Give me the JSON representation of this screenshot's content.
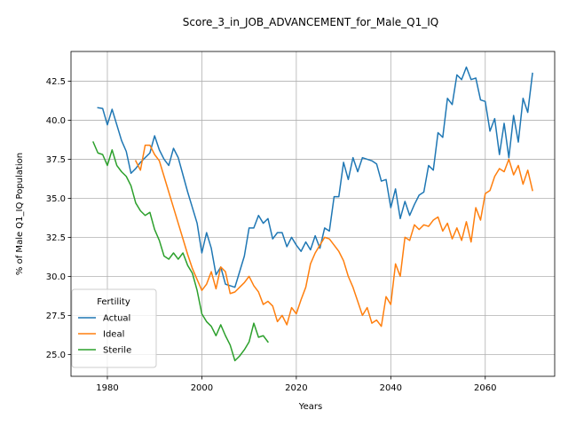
{
  "chart_data": {
    "type": "line",
    "title": "Score_3_in_JOB_ADVANCEMENT_for_Male_Q1_IQ",
    "xlabel": "Years",
    "ylabel": "% of Male Q1_IQ Population",
    "xlim": [
      1972.3,
      2074.7
    ],
    "ylim": [
      23.6,
      44.4
    ],
    "xticks": [
      1980,
      2000,
      2020,
      2040,
      2060
    ],
    "yticks": [
      25.0,
      27.5,
      30.0,
      32.5,
      35.0,
      37.5,
      40.0,
      42.5
    ],
    "xtick_labels": [
      "1980",
      "2000",
      "2020",
      "2040",
      "2060"
    ],
    "ytick_labels": [
      "25.0",
      "27.5",
      "30.0",
      "32.5",
      "35.0",
      "37.5",
      "40.0",
      "42.5"
    ],
    "grid": true,
    "legend": {
      "title": "Fertility",
      "placement": "lower-left"
    },
    "colors": {
      "Actual": "#1f77b4",
      "Ideal": "#ff7f0e",
      "Sterile": "#2ca02c"
    },
    "series": [
      {
        "name": "Actual",
        "x": [
          1978,
          1979,
          1980,
          1981,
          1982,
          1983,
          1984,
          1985,
          1986,
          1987,
          1988,
          1989,
          1990,
          1991,
          1992,
          1993,
          1994,
          1995,
          1996,
          1997,
          1998,
          1999,
          2000,
          2001,
          2002,
          2003,
          2004,
          2005,
          2006,
          2007,
          2008,
          2009,
          2010,
          2011,
          2012,
          2013,
          2014,
          2015,
          2016,
          2017,
          2018,
          2019,
          2020,
          2021,
          2022,
          2023,
          2024,
          2025,
          2026,
          2027,
          2028,
          2029,
          2030,
          2031,
          2032,
          2033,
          2034,
          2035,
          2036,
          2037,
          2038,
          2039,
          2040,
          2041,
          2042,
          2043,
          2044,
          2045,
          2046,
          2047,
          2048,
          2049,
          2050,
          2051,
          2052,
          2053,
          2054,
          2055,
          2056,
          2057,
          2058,
          2059,
          2060,
          2061,
          2062,
          2063,
          2064,
          2065,
          2066,
          2067,
          2068,
          2069,
          2070
        ],
        "values": [
          40.8,
          40.75,
          39.7,
          40.7,
          39.7,
          38.7,
          38.0,
          36.6,
          36.9,
          37.3,
          37.6,
          37.9,
          39.0,
          38.1,
          37.5,
          37.1,
          38.2,
          37.6,
          36.5,
          35.4,
          34.4,
          33.4,
          31.5,
          32.8,
          31.8,
          30.1,
          30.6,
          29.5,
          29.4,
          29.3,
          30.3,
          31.3,
          33.1,
          33.1,
          33.9,
          33.4,
          33.7,
          32.4,
          32.8,
          32.8,
          31.9,
          32.5,
          32.0,
          31.6,
          32.2,
          31.7,
          32.6,
          31.8,
          33.1,
          32.9,
          35.1,
          35.1,
          37.3,
          36.2,
          37.6,
          36.7,
          37.6,
          37.5,
          37.4,
          37.2,
          36.1,
          36.2,
          34.4,
          35.6,
          33.7,
          34.8,
          33.9,
          34.6,
          35.2,
          35.4,
          37.1,
          36.8,
          39.2,
          38.9,
          41.4,
          41.0,
          42.9,
          42.6,
          43.4,
          42.6,
          42.7,
          41.3,
          41.2,
          39.3,
          40.1,
          37.8,
          39.8,
          37.6,
          40.3,
          38.6,
          41.4,
          40.5,
          43.0
        ]
      },
      {
        "name": "Ideal",
        "x": [
          1986,
          1987,
          1988,
          1989,
          1990,
          1991,
          1992,
          1993,
          1994,
          1995,
          1996,
          1997,
          1998,
          1999,
          2000,
          2001,
          2002,
          2003,
          2004,
          2005,
          2006,
          2007,
          2008,
          2009,
          2010,
          2011,
          2012,
          2013,
          2014,
          2015,
          2016,
          2017,
          2018,
          2019,
          2020,
          2021,
          2022,
          2023,
          2024,
          2025,
          2026,
          2027,
          2028,
          2029,
          2030,
          2031,
          2032,
          2033,
          2034,
          2035,
          2036,
          2037,
          2038,
          2039,
          2040,
          2041,
          2042,
          2043,
          2044,
          2045,
          2046,
          2047,
          2048,
          2049,
          2050,
          2051,
          2052,
          2053,
          2054,
          2055,
          2056,
          2057,
          2058,
          2059,
          2060,
          2061,
          2062,
          2063,
          2064,
          2065,
          2066,
          2067,
          2068,
          2069,
          2070
        ],
        "values": [
          37.4,
          36.8,
          38.4,
          38.4,
          37.8,
          37.4,
          36.4,
          35.4,
          34.4,
          33.4,
          32.4,
          31.4,
          30.5,
          29.8,
          29.1,
          29.5,
          30.3,
          29.2,
          30.6,
          30.3,
          28.9,
          29.0,
          29.3,
          29.6,
          30.0,
          29.4,
          29.0,
          28.2,
          28.4,
          28.1,
          27.1,
          27.5,
          26.9,
          28.0,
          27.6,
          28.5,
          29.3,
          30.8,
          31.5,
          32.0,
          32.5,
          32.4,
          32.0,
          31.6,
          31.0,
          30.0,
          29.3,
          28.4,
          27.5,
          28.0,
          27.0,
          27.2,
          26.8,
          28.7,
          28.2,
          30.8,
          30.0,
          32.5,
          32.3,
          33.3,
          33.0,
          33.3,
          33.2,
          33.6,
          33.8,
          32.9,
          33.4,
          32.4,
          33.1,
          32.3,
          33.5,
          32.2,
          34.4,
          33.6,
          35.3,
          35.5,
          36.4,
          36.9,
          36.7,
          37.5,
          36.5,
          37.1,
          35.9,
          36.8,
          35.5
        ]
      },
      {
        "name": "Sterile",
        "x": [
          1977,
          1978,
          1979,
          1980,
          1981,
          1982,
          1983,
          1984,
          1985,
          1986,
          1987,
          1988,
          1989,
          1990,
          1991,
          1992,
          1993,
          1994,
          1995,
          1996,
          1997,
          1998,
          1999,
          2000,
          2001,
          2002,
          2003,
          2004,
          2005,
          2006,
          2007,
          2008,
          2009,
          2010,
          2011,
          2012,
          2013,
          2014
        ],
        "values": [
          38.6,
          37.9,
          37.8,
          37.1,
          38.1,
          37.1,
          36.7,
          36.4,
          35.8,
          34.7,
          34.2,
          33.9,
          34.1,
          33.0,
          32.3,
          31.3,
          31.1,
          31.5,
          31.1,
          31.5,
          30.7,
          30.2,
          29.1,
          27.6,
          27.1,
          26.8,
          26.2,
          26.9,
          26.2,
          25.6,
          24.6,
          24.9,
          25.3,
          25.8,
          27.0,
          26.1,
          26.2,
          25.8
        ]
      }
    ]
  }
}
